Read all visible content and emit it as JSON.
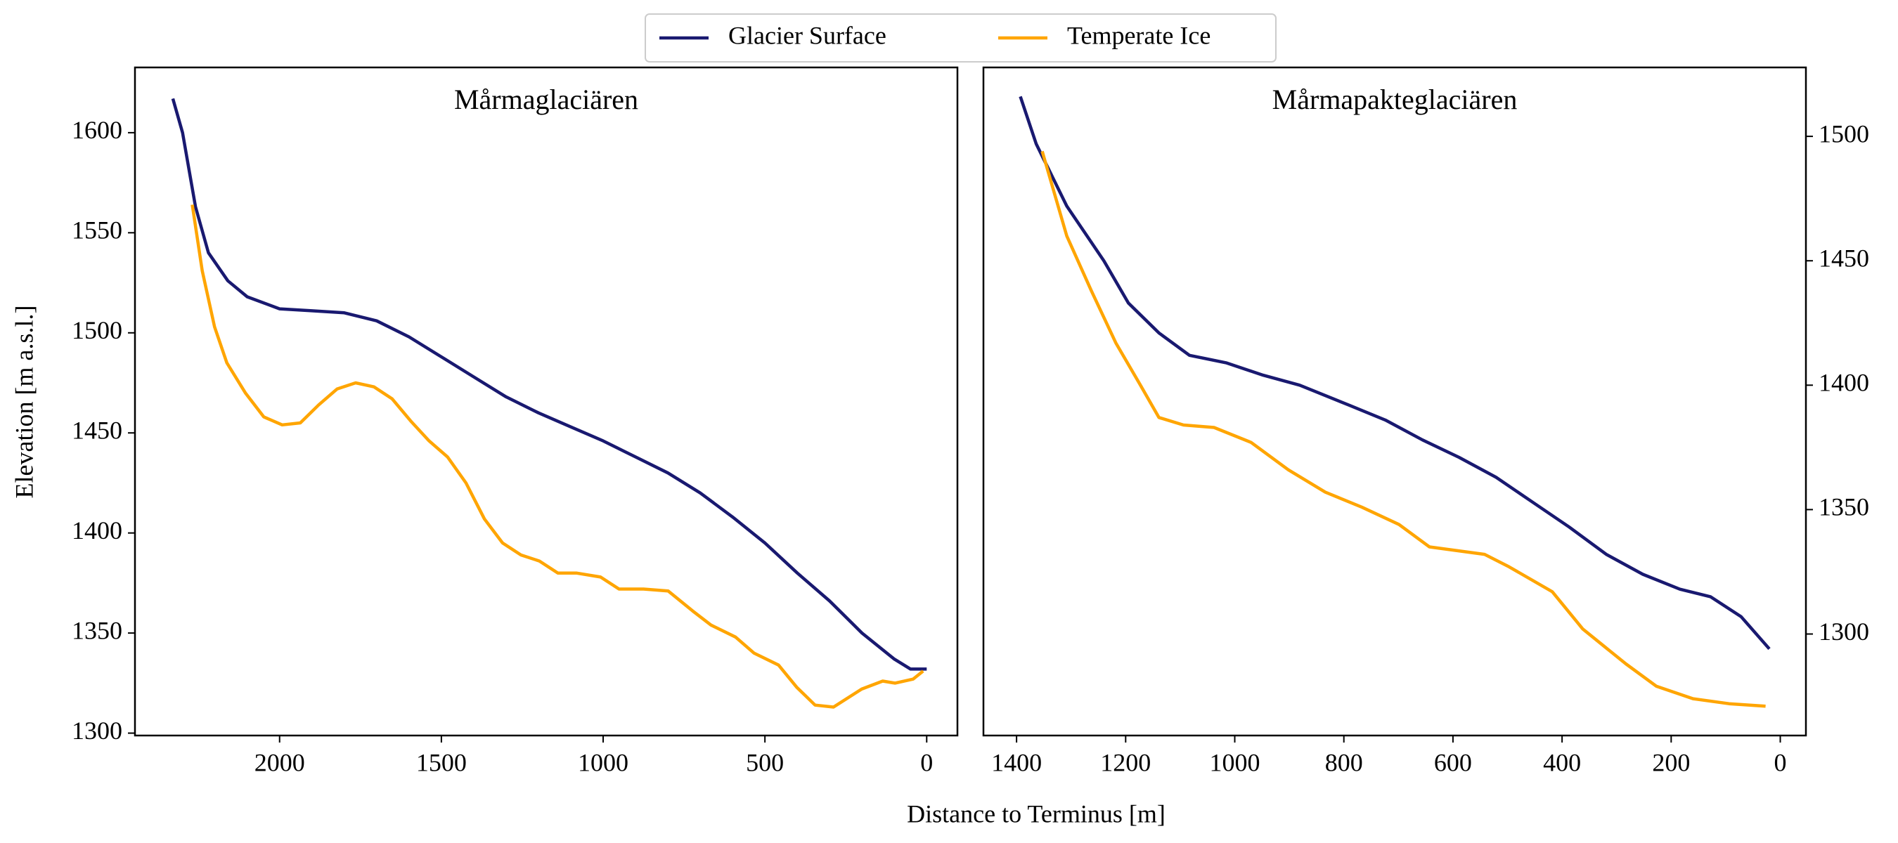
{
  "xlabel": "Distance to Terminus [m]",
  "ylabel": "Elevation [m a.s.l.]",
  "legend_loc": "upper center",
  "chart_data": [
    {
      "type": "line",
      "title": "Mårmaglaciären",
      "xlim": [
        2447,
        -95
      ],
      "ylim": [
        1298.8,
        1632.6
      ],
      "xticks": [
        2000,
        1500,
        1000,
        500,
        0
      ],
      "yticks": [
        1300,
        1350,
        1400,
        1450,
        1500,
        1550,
        1600
      ],
      "yaxis_side": "left",
      "series": [
        {
          "name": "Glacier Surface",
          "color": "#191970",
          "x": [
            2330,
            2300,
            2260,
            2220,
            2160,
            2100,
            2000,
            1900,
            1800,
            1700,
            1600,
            1500,
            1400,
            1300,
            1200,
            1100,
            1000,
            900,
            800,
            700,
            600,
            500,
            400,
            300,
            200,
            100,
            50,
            0
          ],
          "values": [
            1617,
            1600,
            1563,
            1540,
            1526,
            1518,
            1512,
            1511,
            1510,
            1506,
            1498,
            1488,
            1478,
            1468,
            1460,
            1453,
            1446,
            1438,
            1430,
            1420,
            1408,
            1395,
            1380,
            1366,
            1350,
            1337,
            1332,
            1332
          ]
        },
        {
          "name": "Temperate Ice",
          "color": "#ffa500",
          "x": [
            2270,
            2239,
            2201,
            2163,
            2106,
            2049,
            1992,
            1936,
            1879,
            1822,
            1765,
            1708,
            1652,
            1595,
            1538,
            1481,
            1424,
            1367,
            1311,
            1254,
            1197,
            1140,
            1083,
            1008,
            951,
            875,
            799,
            723,
            667,
            591,
            534,
            458,
            402,
            345,
            288,
            201,
            136,
            98,
            42,
            11
          ],
          "values": [
            1564,
            1531,
            1503,
            1485,
            1470,
            1458,
            1454,
            1455,
            1464,
            1472,
            1475,
            1473,
            1467,
            1456,
            1446,
            1438,
            1425,
            1407,
            1395,
            1389,
            1386,
            1380,
            1380,
            1378,
            1372,
            1372,
            1371,
            1361,
            1354,
            1348,
            1340,
            1334,
            1323,
            1314,
            1313,
            1322,
            1326,
            1325,
            1327,
            1331
          ]
        }
      ]
    },
    {
      "type": "line",
      "title": "Mårmapakteglaciären",
      "xlim": [
        1460.7,
        -47
      ],
      "ylim": [
        1259.2,
        1527.7
      ],
      "xticks": [
        1400,
        1200,
        1000,
        800,
        600,
        400,
        200,
        0
      ],
      "yticks": [
        1300,
        1350,
        1400,
        1450,
        1500
      ],
      "yaxis_side": "right",
      "series": [
        {
          "name": "Glacier Surface",
          "color": "#191970",
          "x": [
            1393,
            1364,
            1308,
            1240,
            1195,
            1139,
            1083,
            1016,
            948,
            881,
            791,
            724,
            656,
            589,
            521,
            454,
            387,
            319,
            252,
            184,
            128,
            72,
            20
          ],
          "values": [
            1516,
            1497,
            1472,
            1450,
            1433,
            1421,
            1412,
            1409,
            1404,
            1400,
            1392,
            1386,
            1378,
            1371,
            1363,
            1353,
            1343,
            1332,
            1324,
            1318,
            1315,
            1307,
            1294
          ]
        },
        {
          "name": "Temperate Ice",
          "color": "#ffa500",
          "x": [
            1353,
            1308,
            1263,
            1218,
            1173,
            1139,
            1094,
            1038,
            970,
            902,
            834,
            767,
            699,
            643,
            542,
            497,
            418,
            362,
            283,
            227,
            160,
            94,
            27
          ],
          "values": [
            1494,
            1460,
            1438,
            1417,
            1400,
            1387,
            1384,
            1383,
            1377,
            1366,
            1357,
            1351,
            1344,
            1335,
            1332,
            1327,
            1317,
            1302,
            1288,
            1279,
            1274,
            1272,
            1271
          ]
        }
      ]
    }
  ]
}
